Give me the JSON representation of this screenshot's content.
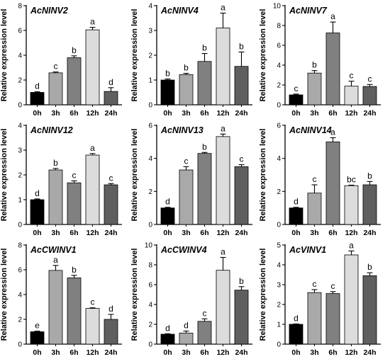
{
  "bar_colors": [
    "#000000",
    "#a9a9a9",
    "#808080",
    "#dcdcdc",
    "#5f5f5f"
  ],
  "chart_data": [
    {
      "type": "bar",
      "title": "AcNINV2",
      "ylabel": "Relative expression level",
      "categories": [
        "0h",
        "3h",
        "6h",
        "12h",
        "24h"
      ],
      "values": [
        1.0,
        2.58,
        3.8,
        6.05,
        1.08
      ],
      "errors": [
        0.05,
        0.07,
        0.15,
        0.2,
        0.3
      ],
      "letters": [
        "d",
        "c",
        "b",
        "a",
        "d"
      ],
      "ylim": [
        0,
        8
      ],
      "yticks": [
        0,
        2,
        4,
        6,
        8
      ]
    },
    {
      "type": "bar",
      "title": "AcNINV4",
      "ylabel": "Relative expression level",
      "categories": [
        "0h",
        "3h",
        "6h",
        "12h",
        "24h"
      ],
      "values": [
        1.0,
        1.22,
        1.75,
        3.1,
        1.55
      ],
      "errors": [
        0.04,
        0.05,
        0.32,
        0.6,
        0.58
      ],
      "letters": [
        "b",
        "b",
        "b",
        "a",
        "b"
      ],
      "ylim": [
        0,
        4
      ],
      "yticks": [
        0,
        1,
        2,
        3,
        4
      ]
    },
    {
      "type": "bar",
      "title": "AcNINV7",
      "ylabel": "Relative expression level",
      "categories": [
        "0h",
        "3h",
        "6h",
        "12h",
        "24h"
      ],
      "values": [
        1.0,
        3.2,
        7.25,
        1.88,
        1.85
      ],
      "errors": [
        0.08,
        0.25,
        1.1,
        0.5,
        0.2
      ],
      "letters": [
        "c",
        "b",
        "a",
        "c",
        "c"
      ],
      "ylim": [
        0,
        10
      ],
      "yticks": [
        0,
        2,
        4,
        6,
        8,
        10
      ]
    },
    {
      "type": "bar",
      "title": "AcNINV12",
      "ylabel": "Relative expression level",
      "categories": [
        "0h",
        "3h",
        "6h",
        "12h",
        "24h"
      ],
      "values": [
        1.0,
        2.2,
        1.68,
        2.8,
        1.6
      ],
      "errors": [
        0.03,
        0.06,
        0.08,
        0.06,
        0.05
      ],
      "letters": [
        "d",
        "b",
        "c",
        "a",
        "c"
      ],
      "ylim": [
        0,
        4
      ],
      "yticks": [
        0,
        1,
        2,
        3,
        4
      ]
    },
    {
      "type": "bar",
      "title": "AcNINV13",
      "ylabel": "Relative expression level",
      "categories": [
        "0h",
        "3h",
        "6h",
        "12h",
        "24h"
      ],
      "values": [
        1.0,
        3.3,
        4.3,
        5.32,
        3.5
      ],
      "errors": [
        0.04,
        0.2,
        0.06,
        0.15,
        0.12
      ],
      "letters": [
        "d",
        "c",
        "b",
        "a",
        "c"
      ],
      "ylim": [
        0,
        6
      ],
      "yticks": [
        0,
        2,
        4,
        6
      ]
    },
    {
      "type": "bar",
      "title": "AcNINV14",
      "ylabel": "Relative expression level",
      "categories": [
        "0h",
        "3h",
        "6h",
        "12h",
        "24h"
      ],
      "values": [
        1.0,
        1.9,
        5.0,
        2.35,
        2.4
      ],
      "errors": [
        0.04,
        0.5,
        0.25,
        0.03,
        0.2
      ],
      "letters": [
        "d",
        "c",
        "a",
        "bc",
        "b"
      ],
      "ylim": [
        0,
        6
      ],
      "yticks": [
        0,
        2,
        4,
        6
      ]
    },
    {
      "type": "bar",
      "title": "AcCWINV1",
      "ylabel": "Relative expression level",
      "categories": [
        "0h",
        "3h",
        "6h",
        "12h",
        "24h"
      ],
      "values": [
        1.0,
        5.95,
        5.35,
        2.88,
        2.0
      ],
      "errors": [
        0.05,
        0.4,
        0.2,
        0.05,
        0.4
      ],
      "letters": [
        "e",
        "a",
        "b",
        "c",
        "d"
      ],
      "ylim": [
        0,
        8
      ],
      "yticks": [
        0,
        2,
        4,
        6,
        8
      ]
    },
    {
      "type": "bar",
      "title": "AcCWINV4",
      "ylabel": "Relative expression level",
      "categories": [
        "0h",
        "3h",
        "6h",
        "12h",
        "24h"
      ],
      "values": [
        1.0,
        1.12,
        2.3,
        7.45,
        5.45
      ],
      "errors": [
        0.05,
        0.2,
        0.25,
        1.3,
        0.35
      ],
      "letters": [
        "d",
        "d",
        "c",
        "a",
        "b"
      ],
      "ylim": [
        0,
        10
      ],
      "yticks": [
        0,
        2,
        4,
        6,
        8,
        10
      ]
    },
    {
      "type": "bar",
      "title": "AcVINV1",
      "ylabel": "Relative expression level",
      "categories": [
        "0h",
        "3h",
        "6h",
        "12h",
        "24h"
      ],
      "values": [
        1.0,
        2.6,
        2.55,
        4.5,
        3.45
      ],
      "errors": [
        0.02,
        0.15,
        0.1,
        0.2,
        0.15
      ],
      "letters": [
        "d",
        "c",
        "c",
        "a",
        "b"
      ],
      "ylim": [
        0,
        5
      ],
      "yticks": [
        0,
        1,
        2,
        3,
        4,
        5
      ]
    }
  ]
}
